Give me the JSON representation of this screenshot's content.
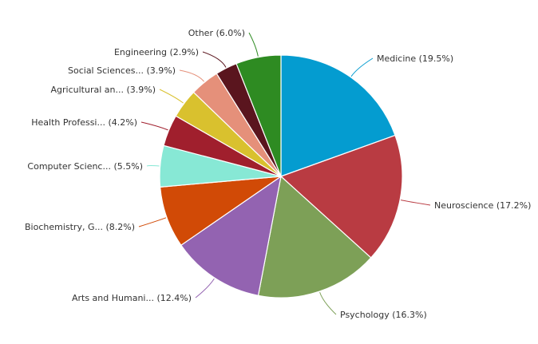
{
  "chart_data": {
    "type": "pie",
    "slices": [
      {
        "label": "Medicine (19.5%)",
        "value": 19.5,
        "color": "#049cd0",
        "line": "#049cd0"
      },
      {
        "label": "Neuroscience (17.2%)",
        "value": 17.2,
        "color": "#b93b42",
        "line": "#b93b42"
      },
      {
        "label": "Psychology (16.3%)",
        "value": 16.3,
        "color": "#7da057",
        "line": "#7da057"
      },
      {
        "label": "Arts and Humani... (12.4%)",
        "value": 12.4,
        "color": "#9363b1",
        "line": "#9363b1"
      },
      {
        "label": "Biochemistry, G... (8.2%)",
        "value": 8.2,
        "color": "#d14a06",
        "line": "#d14a06"
      },
      {
        "label": "Computer Scienc... (5.5%)",
        "value": 5.5,
        "color": "#87e8d5",
        "line": "#87e8d5"
      },
      {
        "label": "Health Professi... (4.2%)",
        "value": 4.2,
        "color": "#a01f2d",
        "line": "#a01f2d"
      },
      {
        "label": "Agricultural an... (3.9%)",
        "value": 3.9,
        "color": "#d9c12e",
        "line": "#d9c12e"
      },
      {
        "label": "Social Sciences... (3.9%)",
        "value": 3.9,
        "color": "#e5907a",
        "line": "#e5907a"
      },
      {
        "label": "Engineering (2.9%)",
        "value": 2.9,
        "color": "#5a151e",
        "line": "#5a151e"
      },
      {
        "label": "Other (6.0%)",
        "value": 6.0,
        "color": "#2e8b22",
        "line": "#2e8b22"
      }
    ]
  }
}
